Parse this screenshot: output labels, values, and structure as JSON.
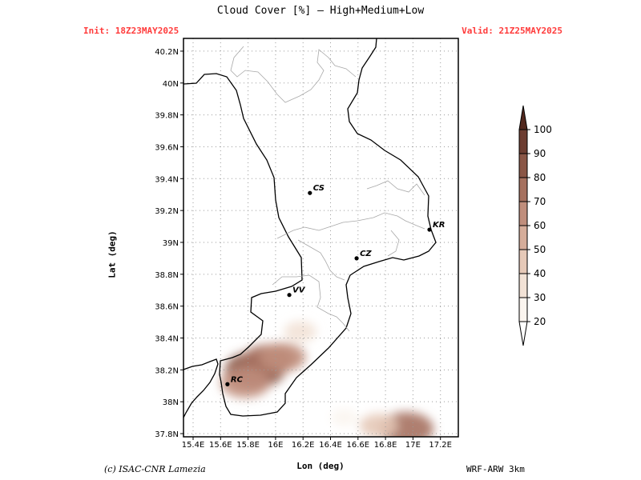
{
  "title": "Cloud Cover [%] — High+Medium+Low",
  "init": "Init: 18Z23MAY2025",
  "valid": "Valid: 21Z25MAY2025",
  "xlabel": "Lon (deg)",
  "ylabel": "Lat (deg)",
  "credit": "(c) ISAC-CNR Lamezia",
  "model": "WRF-ARW 3km",
  "lon_ticks": [
    "15.4E",
    "15.6E",
    "15.8E",
    "16E",
    "16.2E",
    "16.4E",
    "16.6E",
    "16.8E",
    "17E",
    "17.2E"
  ],
  "lat_ticks": [
    "37.8N",
    "38N",
    "38.2N",
    "38.4N",
    "38.6N",
    "38.8N",
    "39N",
    "39.2N",
    "39.4N",
    "39.6N",
    "39.8N",
    "40N",
    "40.2N"
  ],
  "cities": [
    {
      "code": "CS",
      "lon": 16.25,
      "lat": 39.31
    },
    {
      "code": "KR",
      "lon": 17.12,
      "lat": 39.08
    },
    {
      "code": "CZ",
      "lon": 16.59,
      "lat": 38.9
    },
    {
      "code": "VV",
      "lon": 16.1,
      "lat": 38.67
    },
    {
      "code": "RC",
      "lon": 15.65,
      "lat": 38.11
    }
  ],
  "colorbar": {
    "levels": [
      "20",
      "30",
      "40",
      "50",
      "60",
      "70",
      "80",
      "90",
      "100"
    ],
    "colors": [
      "#fbf5ef",
      "#f2e2d6",
      "#e6c9b8",
      "#d6ad9a",
      "#c08e7c",
      "#a6715f",
      "#8a5646",
      "#6d3d31",
      "#52281e"
    ]
  },
  "cloud_cells": [
    {
      "lon": 15.85,
      "lat": 38.2,
      "pct": 85
    },
    {
      "lon": 15.95,
      "lat": 38.26,
      "pct": 70
    },
    {
      "lon": 16.05,
      "lat": 38.28,
      "pct": 60
    },
    {
      "lon": 15.78,
      "lat": 38.12,
      "pct": 65
    },
    {
      "lon": 16.18,
      "lat": 38.44,
      "pct": 35
    },
    {
      "lon": 16.95,
      "lat": 37.83,
      "pct": 75
    },
    {
      "lon": 16.75,
      "lat": 37.85,
      "pct": 45
    },
    {
      "lon": 16.5,
      "lat": 37.9,
      "pct": 25
    }
  ]
}
